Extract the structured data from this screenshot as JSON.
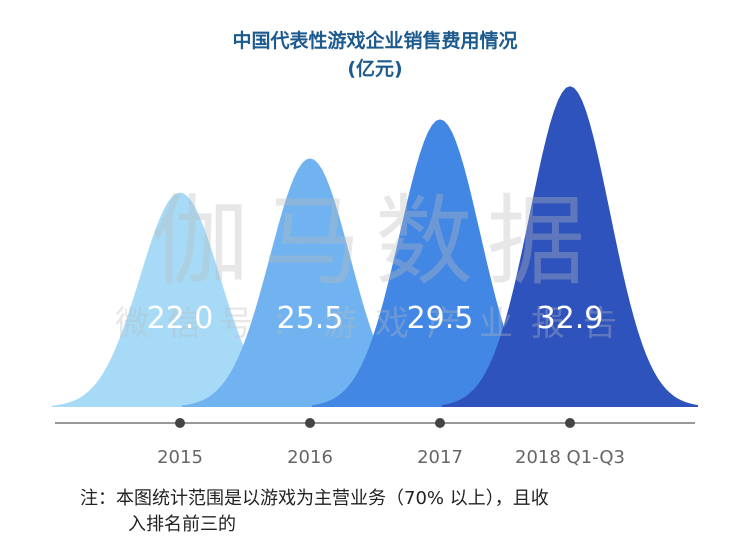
{
  "chart_data": {
    "type": "area",
    "title": "中国代表性游戏企业销售费用情况",
    "subtitle": "(亿元)",
    "categories": [
      "2015",
      "2016",
      "2017",
      "2018 Q1-Q3"
    ],
    "values": [
      22.0,
      25.5,
      29.5,
      32.9
    ],
    "data_labels": [
      "22.0",
      "25.5",
      "29.5",
      "32.9"
    ],
    "colors": [
      "#a6daf7",
      "#70b3f0",
      "#4387e5",
      "#2e53bd"
    ],
    "grid": false,
    "legend": "none"
  },
  "watermark": {
    "main": "伽马数据",
    "sub": "微信号：游戏产业报告"
  },
  "note": {
    "line1": "注：本图统计范围是以游戏为主营业务（70% 以上），且收",
    "line2": "入排名前三的"
  }
}
